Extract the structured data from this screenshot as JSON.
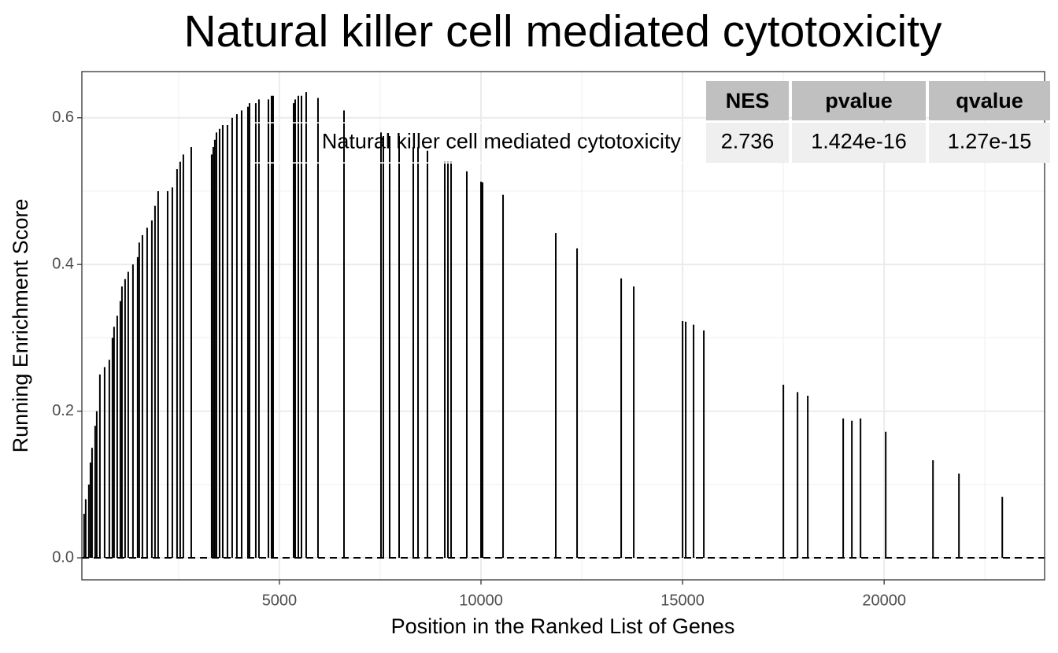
{
  "chart_data": {
    "type": "spike",
    "title": "Natural killer cell mediated cytotoxicity",
    "x_label": "Position in the Ranked List of Genes",
    "y_label": "Running Enrichment Score",
    "x": [
      156,
      195,
      273,
      313,
      352,
      430,
      469,
      547,
      664,
      781,
      859,
      898,
      977,
      1055,
      1094,
      1172,
      1250,
      1367,
      1484,
      1523,
      1602,
      1719,
      1836,
      1914,
      1992,
      2227,
      2344,
      2461,
      2539,
      2617,
      2813,
      3320,
      3359,
      3398,
      3438,
      3516,
      3594,
      3711,
      3828,
      3945,
      4063,
      4219,
      4258,
      4414,
      4492,
      4727,
      4805,
      4844,
      5352,
      5391,
      5469,
      5547,
      5664,
      5957,
      6602,
      7520,
      7578,
      7734,
      7969,
      8320,
      8438,
      8672,
      9102,
      9180,
      9258,
      9648,
      10000,
      10039,
      10547,
      11855,
      12383,
      13477,
      13789,
      15000,
      15078,
      15273,
      15527,
      17500,
      17852,
      18105,
      18984,
      19199,
      19414,
      20039,
      21211,
      21855,
      22930
    ],
    "values": [
      0.06,
      0.08,
      0.1,
      0.13,
      0.15,
      0.18,
      0.2,
      0.25,
      0.26,
      0.27,
      0.3,
      0.315,
      0.33,
      0.35,
      0.37,
      0.38,
      0.39,
      0.4,
      0.41,
      0.43,
      0.44,
      0.45,
      0.46,
      0.48,
      0.5,
      0.5,
      0.505,
      0.53,
      0.54,
      0.55,
      0.56,
      0.55,
      0.56,
      0.57,
      0.58,
      0.585,
      0.59,
      0.59,
      0.6,
      0.605,
      0.61,
      0.615,
      0.62,
      0.62,
      0.625,
      0.625,
      0.63,
      0.63,
      0.62,
      0.625,
      0.63,
      0.63,
      0.635,
      0.627,
      0.61,
      0.58,
      0.575,
      0.575,
      0.575,
      0.56,
      0.56,
      0.555,
      0.54,
      0.54,
      0.54,
      0.527,
      0.513,
      0.512,
      0.495,
      0.443,
      0.422,
      0.381,
      0.37,
      0.323,
      0.322,
      0.318,
      0.31,
      0.236,
      0.226,
      0.221,
      0.19,
      0.187,
      0.19,
      0.172,
      0.133,
      0.115,
      0.083
    ],
    "color": "#000000",
    "hline": 0,
    "xlim": [
      100,
      23980
    ],
    "ylim": [
      -0.03,
      0.663
    ],
    "xticks": [
      5000,
      10000,
      15000,
      20000
    ],
    "yticks": [
      {
        "value": 0,
        "label": "0.0"
      },
      {
        "value": 0.2,
        "label": "0.2"
      },
      {
        "value": 0.4,
        "label": "0.4"
      },
      {
        "value": 0.6,
        "label": "0.6"
      }
    ],
    "x_minor_ticks": [
      2500,
      7500,
      12500,
      17500,
      22500
    ],
    "y_minor_ticks": [
      0.1,
      0.3,
      0.5
    ],
    "grid": true,
    "table": {
      "columns": [
        "NES",
        "pvalue",
        "qvalue"
      ],
      "rows": [
        [
          "Natural killer cell mediated cytotoxicity",
          "2.736",
          "1.424e-16",
          "1.27e-15"
        ]
      ]
    }
  }
}
